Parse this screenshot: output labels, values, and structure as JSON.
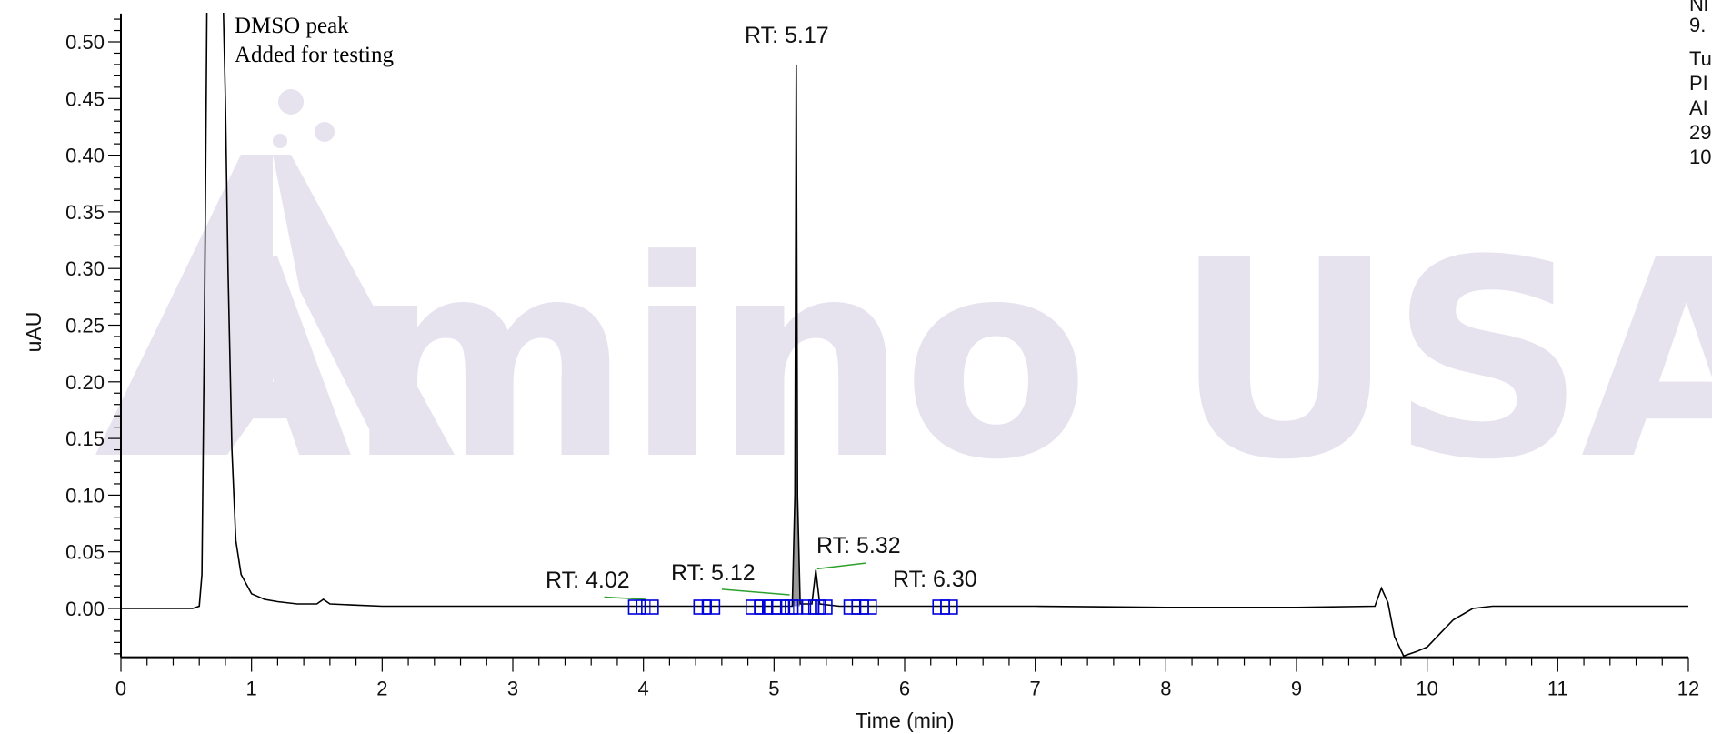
{
  "watermark": {
    "text": "Amino USA",
    "color": "#e6e3ef"
  },
  "annotation": {
    "line1": "DMSO peak",
    "line2": "Added for testing"
  },
  "side_text": [
    "Ni",
    "9.",
    "Tu",
    "PI",
    "AI",
    "29",
    "10"
  ],
  "chart_data": {
    "type": "line",
    "xlabel": "Time (min)",
    "ylabel": "uAU",
    "xlim": [
      0,
      12
    ],
    "ylim": [
      -0.043,
      0.525
    ],
    "x_ticks": [
      "0",
      "1",
      "2",
      "3",
      "4",
      "5",
      "6",
      "7",
      "8",
      "9",
      "10",
      "11",
      "12"
    ],
    "y_ticks": [
      "0.00",
      "0.05",
      "0.10",
      "0.15",
      "0.20",
      "0.25",
      "0.30",
      "0.35",
      "0.40",
      "0.45",
      "0.50"
    ],
    "grid": false,
    "line_color": "#000000",
    "peak_fill": "#9a9a9a",
    "baseline_color": "#2ca02c",
    "marker_color": "#0000dd",
    "series": [
      {
        "points": [
          [
            0,
            0.0
          ],
          [
            0.55,
            0.0
          ],
          [
            0.6,
            0.002
          ],
          [
            0.62,
            0.03
          ],
          [
            0.64,
            0.25
          ],
          [
            0.66,
            0.55
          ],
          [
            0.78,
            0.55
          ],
          [
            0.8,
            0.45
          ],
          [
            0.82,
            0.3
          ],
          [
            0.85,
            0.14
          ],
          [
            0.88,
            0.06
          ],
          [
            0.92,
            0.03
          ],
          [
            1.0,
            0.013
          ],
          [
            1.1,
            0.008
          ],
          [
            1.2,
            0.006
          ],
          [
            1.35,
            0.004
          ],
          [
            1.5,
            0.004
          ],
          [
            1.55,
            0.008
          ],
          [
            1.6,
            0.004
          ],
          [
            1.8,
            0.003
          ],
          [
            2.0,
            0.002
          ],
          [
            3.0,
            0.002
          ],
          [
            4.0,
            0.002
          ],
          [
            5.0,
            0.002
          ],
          [
            5.14,
            0.002
          ],
          [
            5.16,
            0.1
          ],
          [
            5.17,
            0.48
          ],
          [
            5.18,
            0.1
          ],
          [
            5.2,
            0.004
          ],
          [
            5.29,
            0.004
          ],
          [
            5.32,
            0.034
          ],
          [
            5.35,
            0.004
          ],
          [
            5.5,
            0.002
          ],
          [
            6.0,
            0.002
          ],
          [
            7.0,
            0.002
          ],
          [
            8.0,
            0.001
          ],
          [
            9.0,
            0.001
          ],
          [
            9.6,
            0.002
          ],
          [
            9.65,
            0.018
          ],
          [
            9.7,
            0.005
          ],
          [
            9.75,
            -0.025
          ],
          [
            9.82,
            -0.042
          ],
          [
            9.92,
            -0.038
          ],
          [
            10.0,
            -0.034
          ],
          [
            10.1,
            -0.022
          ],
          [
            10.2,
            -0.01
          ],
          [
            10.35,
            0.0
          ],
          [
            10.5,
            0.002
          ],
          [
            11.0,
            0.002
          ],
          [
            12.0,
            0.002
          ]
        ]
      }
    ],
    "peaks": [
      {
        "label": "RT: 4.02",
        "rt": 4.02,
        "height": 0.013
      },
      {
        "label": "RT: 5.12",
        "rt": 5.12,
        "height": 0.018
      },
      {
        "label": "RT: 5.17",
        "rt": 5.17,
        "height": 0.5
      },
      {
        "label": "RT: 5.32",
        "rt": 5.32,
        "height": 0.045
      },
      {
        "label": "RT: 6.30",
        "rt": 6.3,
        "height": 0.013
      }
    ],
    "baseline_segments": [
      [
        3.7,
        0.01,
        4.02,
        0.008
      ],
      [
        4.6,
        0.017,
        5.12,
        0.012
      ],
      [
        5.33,
        0.035,
        5.7,
        0.04
      ]
    ],
    "integration_markers": [
      3.95,
      4.05,
      4.45,
      4.52,
      4.85,
      4.92,
      4.99,
      5.05,
      5.12,
      5.15,
      5.28,
      5.33,
      5.38,
      5.6,
      5.66,
      5.72,
      6.28,
      6.34
    ]
  }
}
